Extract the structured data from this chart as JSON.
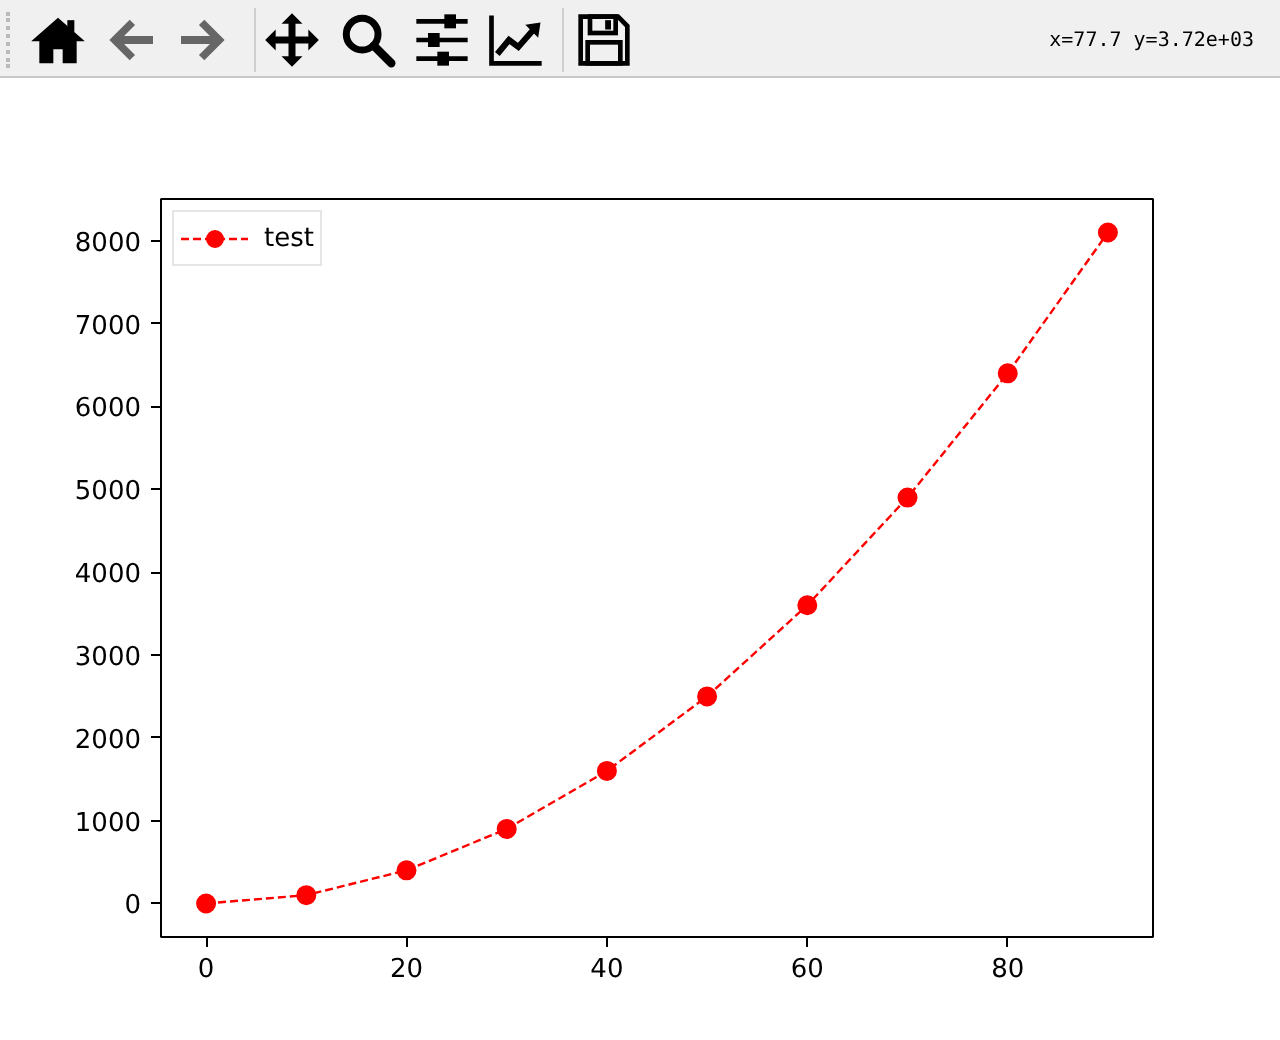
{
  "chart_data": {
    "type": "line",
    "x": [
      0,
      10,
      20,
      30,
      40,
      50,
      60,
      70,
      80,
      90
    ],
    "series": [
      {
        "name": "test",
        "color": "#ff0000",
        "values": [
          0,
          100,
          400,
          900,
          1600,
          2500,
          3600,
          4900,
          6400,
          8100
        ]
      }
    ],
    "xlim": [
      -4.5,
      94.5
    ],
    "ylim": [
      -405,
      8505
    ],
    "xticks": [
      0,
      20,
      40,
      60,
      80
    ],
    "yticks": [
      0,
      1000,
      2000,
      3000,
      4000,
      5000,
      6000,
      7000,
      8000
    ],
    "legend": "top left",
    "marker": "circle",
    "line_style": "dashed",
    "annotations": [
      "x=77.7 y=3.72e+03"
    ]
  }
}
